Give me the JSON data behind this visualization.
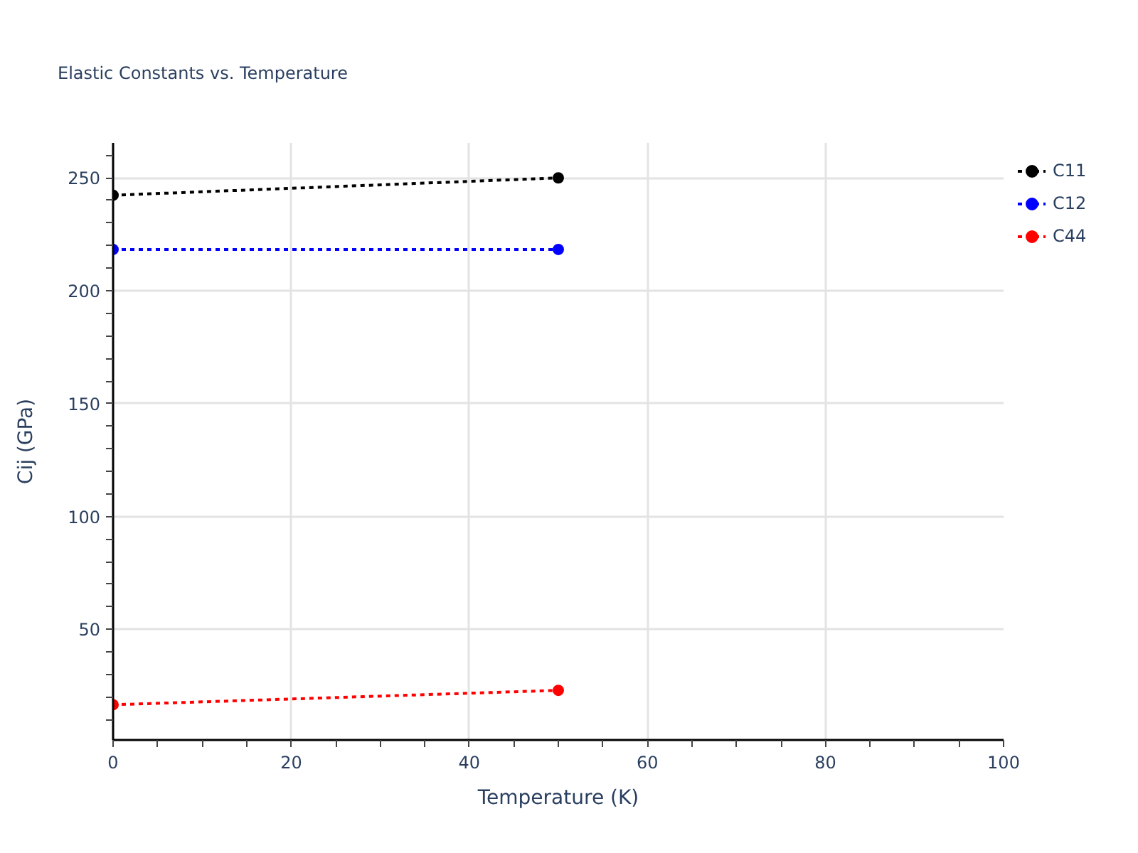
{
  "chart_data": {
    "type": "line",
    "title": "Elastic Constants vs. Temperature",
    "xlabel": "Temperature (K)",
    "ylabel": "Cij (GPa)",
    "x": [
      0,
      50
    ],
    "series": [
      {
        "name": "C11",
        "color": "#000000",
        "values": [
          242.3,
          250
        ]
      },
      {
        "name": "C12",
        "color": "#0000ff",
        "values": [
          218.3,
          218.3
        ]
      },
      {
        "name": "C44",
        "color": "#ff0000",
        "values": [
          16.6,
          23
        ]
      }
    ],
    "xlim": [
      0,
      100
    ],
    "ylim": [
      1,
      265.5
    ],
    "xticks": [
      0,
      {
        "value": 5,
        "label": null
      },
      {
        "value": 10,
        "label": null
      },
      {
        "value": 15,
        "label": null
      },
      20,
      {
        "value": 25,
        "label": null
      },
      {
        "value": 30,
        "label": null
      },
      {
        "value": 35,
        "label": null
      },
      40,
      {
        "value": 45,
        "label": null
      },
      {
        "value": 50,
        "label": null
      },
      {
        "value": 55,
        "label": null
      },
      60,
      {
        "value": 65,
        "label": null
      },
      {
        "value": 70,
        "label": null
      },
      {
        "value": 75,
        "label": null
      },
      80,
      {
        "value": 85,
        "label": null
      },
      {
        "value": 90,
        "label": null
      },
      {
        "value": 95,
        "label": null
      },
      100
    ],
    "yticks": [
      {
        "value": 10,
        "label": null
      },
      {
        "value": 20,
        "label": null
      },
      {
        "value": 30,
        "label": null
      },
      {
        "value": 40,
        "label": null
      },
      50,
      {
        "value": 60,
        "label": null
      },
      {
        "value": 70,
        "label": null
      },
      {
        "value": 80,
        "label": null
      },
      {
        "value": 90,
        "label": null
      },
      100,
      {
        "value": 110,
        "label": null
      },
      {
        "value": 120,
        "label": null
      },
      {
        "value": 130,
        "label": null
      },
      {
        "value": 140,
        "label": null
      },
      150,
      {
        "value": 160,
        "label": null
      },
      {
        "value": 170,
        "label": null
      },
      {
        "value": 180,
        "label": null
      },
      {
        "value": 190,
        "label": null
      },
      200,
      {
        "value": 210,
        "label": null
      },
      {
        "value": 220,
        "label": null
      },
      {
        "value": 230,
        "label": null
      },
      {
        "value": 240,
        "label": null
      },
      250,
      {
        "value": 260,
        "label": null
      }
    ],
    "grid": true,
    "legend": "top right",
    "marker": "circle",
    "line_style": "dotted"
  }
}
